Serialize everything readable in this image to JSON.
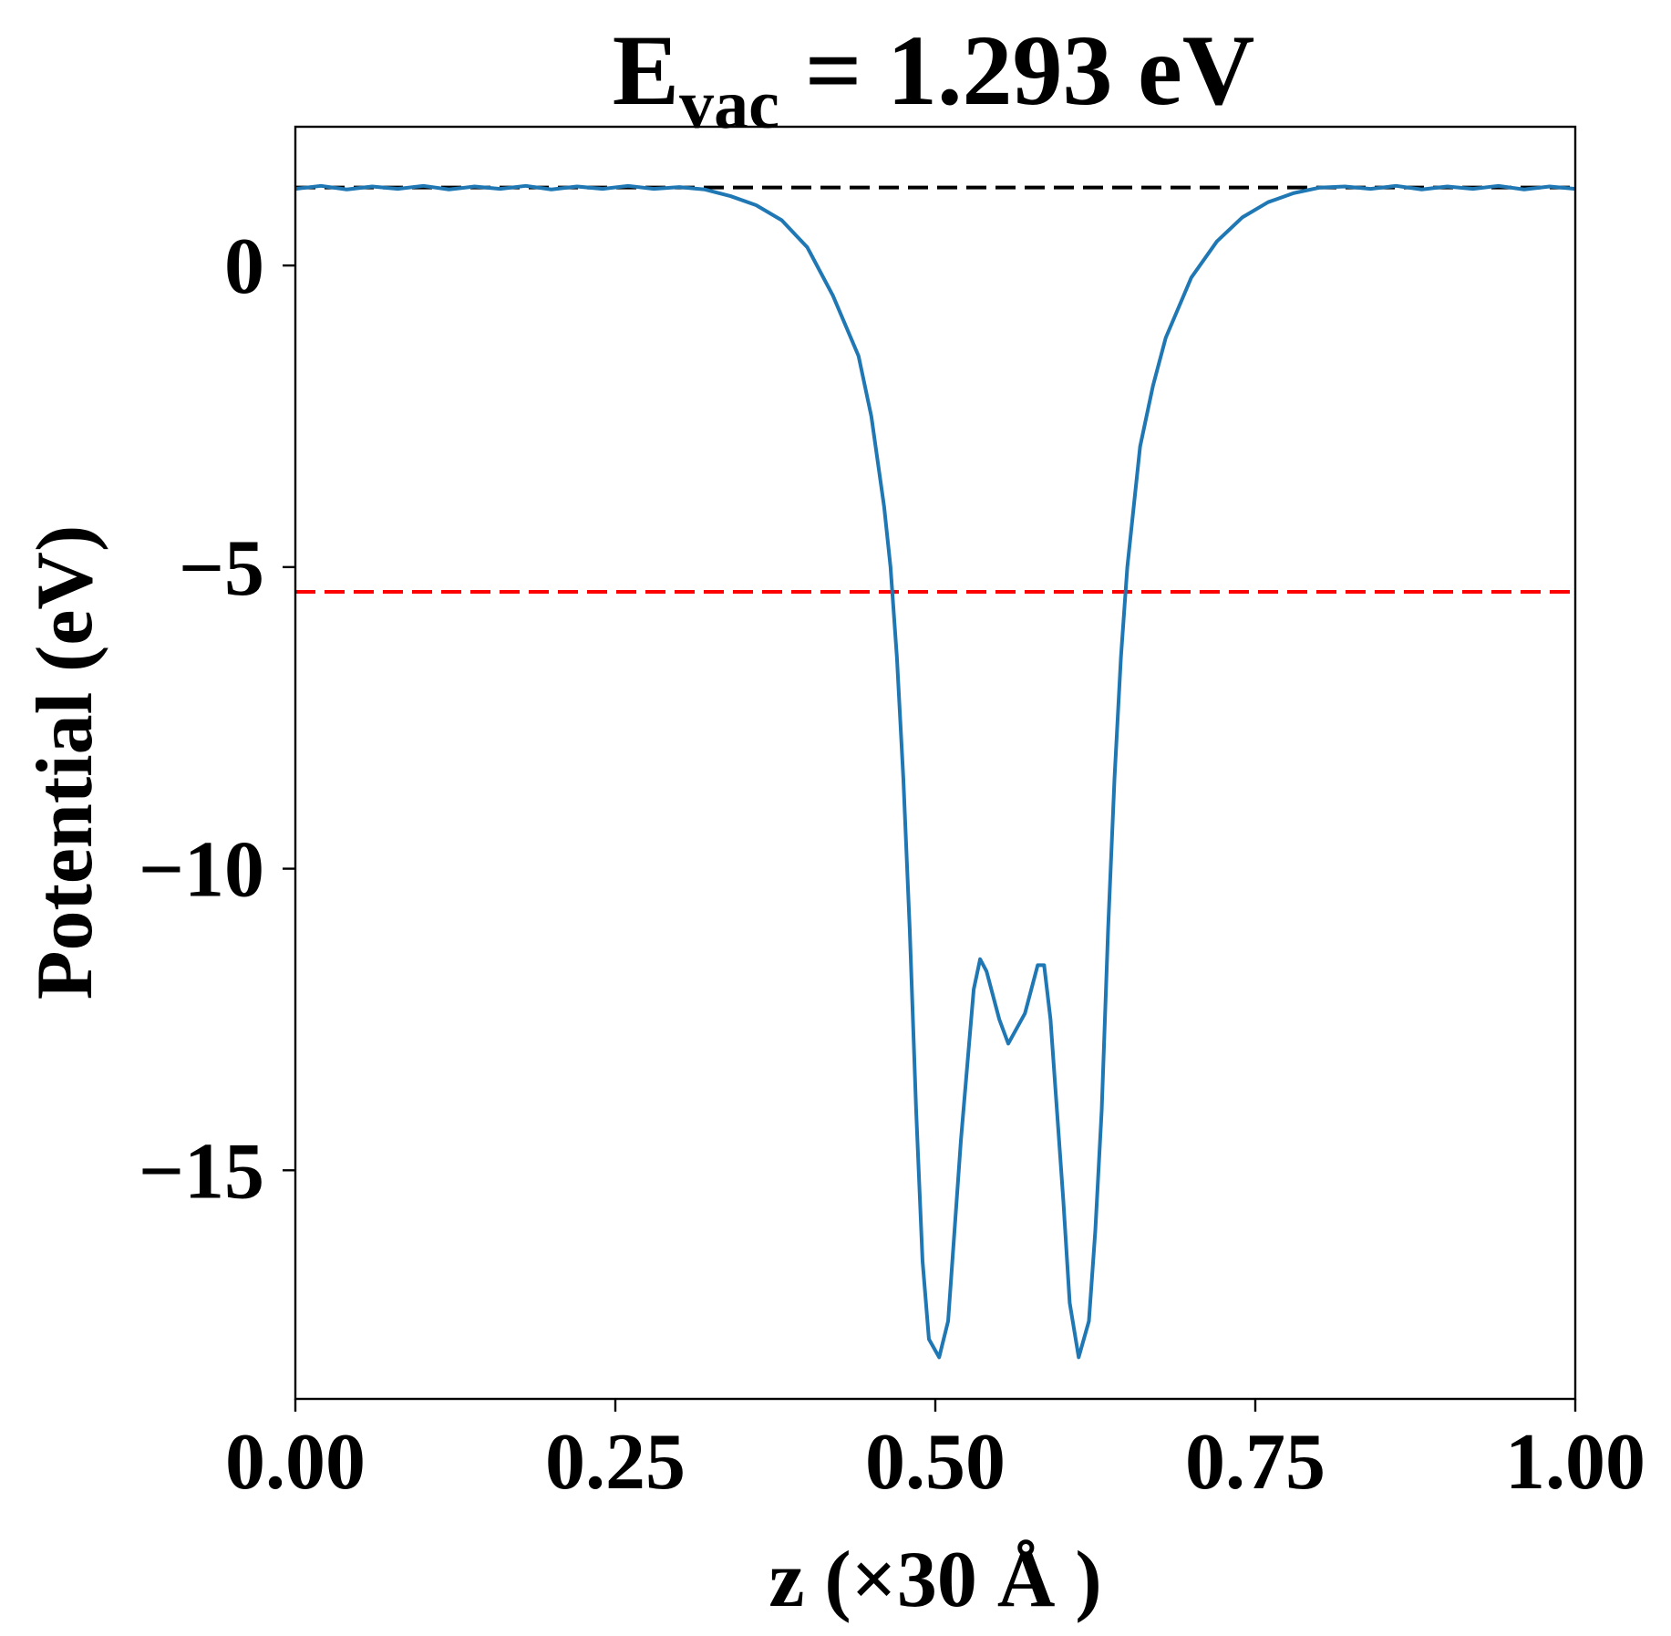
{
  "chart_data": {
    "type": "line",
    "title": {
      "main": "E",
      "sub": "vac",
      "rest": "= 1.293 eV"
    },
    "x_label": "z (×30 Å )",
    "y_label": "Potential (eV)",
    "xlim": [
      0,
      1
    ],
    "ylim": [
      -18.79,
      2.3
    ],
    "xticks": [
      {
        "value": 0,
        "label": "0.00"
      },
      {
        "value": 0.25,
        "label": "0.25"
      },
      {
        "value": 0.5,
        "label": "0.50"
      },
      {
        "value": 0.75,
        "label": "0.75"
      },
      {
        "value": 1,
        "label": "1.00"
      }
    ],
    "yticks": [
      0,
      {
        "value": -5,
        "label": "−5"
      },
      {
        "value": -10,
        "label": "−10"
      },
      {
        "value": -15,
        "label": "−15"
      }
    ],
    "hlines": [
      {
        "value": 1.293,
        "color": "#000000"
      },
      {
        "value": -5.41,
        "color": "#ff0000"
      }
    ],
    "series": [
      {
        "color": "#1f77b4",
        "x": [
          0,
          0.02,
          0.04,
          0.06,
          0.08,
          0.1,
          0.12,
          0.14,
          0.16,
          0.18,
          0.2,
          0.22,
          0.24,
          0.26,
          0.28,
          0.3,
          0.32,
          0.34,
          0.36,
          0.38,
          0.4,
          0.42,
          0.44,
          0.45,
          0.46,
          0.465,
          0.47,
          0.475,
          0.48,
          0.485,
          0.49,
          0.495,
          0.503,
          0.51,
          0.52,
          0.53,
          0.535,
          0.54,
          0.55,
          0.557,
          0.57,
          0.58,
          0.585,
          0.59,
          0.6,
          0.605,
          0.612,
          0.62,
          0.625,
          0.63,
          0.635,
          0.64,
          0.645,
          0.65,
          0.655,
          0.66,
          0.67,
          0.68,
          0.7,
          0.72,
          0.74,
          0.76,
          0.78,
          0.8,
          0.82,
          0.84,
          0.86,
          0.88,
          0.9,
          0.92,
          0.94,
          0.96,
          0.98,
          1
        ],
        "values": [
          1.27,
          1.32,
          1.26,
          1.31,
          1.27,
          1.32,
          1.26,
          1.31,
          1.27,
          1.32,
          1.26,
          1.31,
          1.27,
          1.32,
          1.27,
          1.3,
          1.26,
          1.15,
          1.0,
          0.75,
          0.3,
          -0.5,
          -1.5,
          -2.5,
          -4.0,
          -5.0,
          -6.5,
          -8.5,
          -11.0,
          -14.0,
          -16.5,
          -17.8,
          -18.1,
          -17.5,
          -14.5,
          -12.0,
          -11.5,
          -11.7,
          -12.5,
          -12.9,
          -12.4,
          -11.6,
          -11.6,
          -12.5,
          -15.5,
          -17.2,
          -18.1,
          -17.5,
          -16.0,
          -14.0,
          -11.0,
          -8.5,
          -6.5,
          -5.0,
          -4.0,
          -3.0,
          -2.0,
          -1.2,
          -0.2,
          0.4,
          0.8,
          1.05,
          1.2,
          1.29,
          1.31,
          1.27,
          1.32,
          1.26,
          1.31,
          1.27,
          1.32,
          1.26,
          1.31,
          1.27
        ]
      }
    ]
  }
}
